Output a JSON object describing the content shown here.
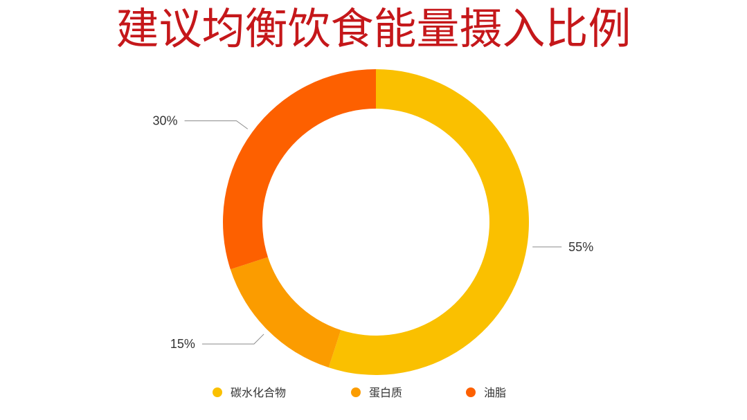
{
  "chart_data": {
    "type": "pie",
    "subtype": "donut",
    "title": "建议均衡饮食能量摄入比例",
    "categories": [
      "碳水化合物",
      "蛋白质",
      "油脂"
    ],
    "values": [
      55,
      15,
      30
    ],
    "value_labels": [
      "55%",
      "15%",
      "30%"
    ],
    "colors": [
      "#fac000",
      "#fb9c00",
      "#fd6000"
    ],
    "legend_position": "bottom",
    "start_angle": "12 o'clock, clockwise"
  }
}
